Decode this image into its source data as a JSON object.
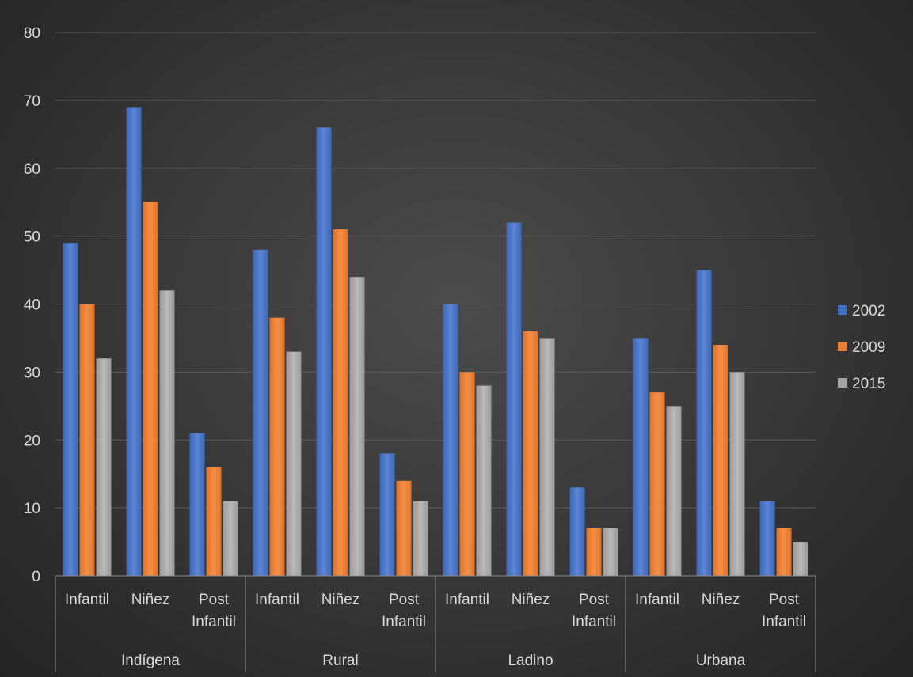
{
  "chart_data": {
    "type": "bar",
    "title": "",
    "xlabel": "",
    "ylabel": "",
    "ylim": [
      0,
      80
    ],
    "yticks": [
      "0",
      "10",
      "20",
      "30",
      "40",
      "50",
      "60",
      "70",
      "80"
    ],
    "grid": true,
    "legend_position": "right",
    "groups": [
      {
        "name": "Indígena",
        "categories": [
          [
            "Infantil"
          ],
          [
            "Niñez"
          ],
          [
            "Post",
            "Infantil"
          ]
        ]
      },
      {
        "name": "Rural",
        "categories": [
          [
            "Infantil"
          ],
          [
            "Niñez"
          ],
          [
            "Post",
            "Infantil"
          ]
        ]
      },
      {
        "name": "Ladino",
        "categories": [
          [
            "Infantil"
          ],
          [
            "Niñez"
          ],
          [
            "Post",
            "Infantil"
          ]
        ]
      },
      {
        "name": "Urbana",
        "categories": [
          [
            "Infantil"
          ],
          [
            "Niñez"
          ],
          [
            "Post",
            "Infantil"
          ]
        ]
      }
    ],
    "series": [
      {
        "name": "2002",
        "color": "#4472c4",
        "values": [
          49,
          69,
          21,
          48,
          66,
          18,
          40,
          52,
          13,
          35,
          45,
          11
        ]
      },
      {
        "name": "2009",
        "color": "#ed7d31",
        "values": [
          40,
          55,
          16,
          38,
          51,
          14,
          30,
          36,
          7,
          27,
          34,
          7
        ]
      },
      {
        "name": "2015",
        "color": "#a5a5a5",
        "values": [
          32,
          42,
          11,
          33,
          44,
          11,
          28,
          35,
          7,
          25,
          30,
          5
        ]
      }
    ]
  }
}
